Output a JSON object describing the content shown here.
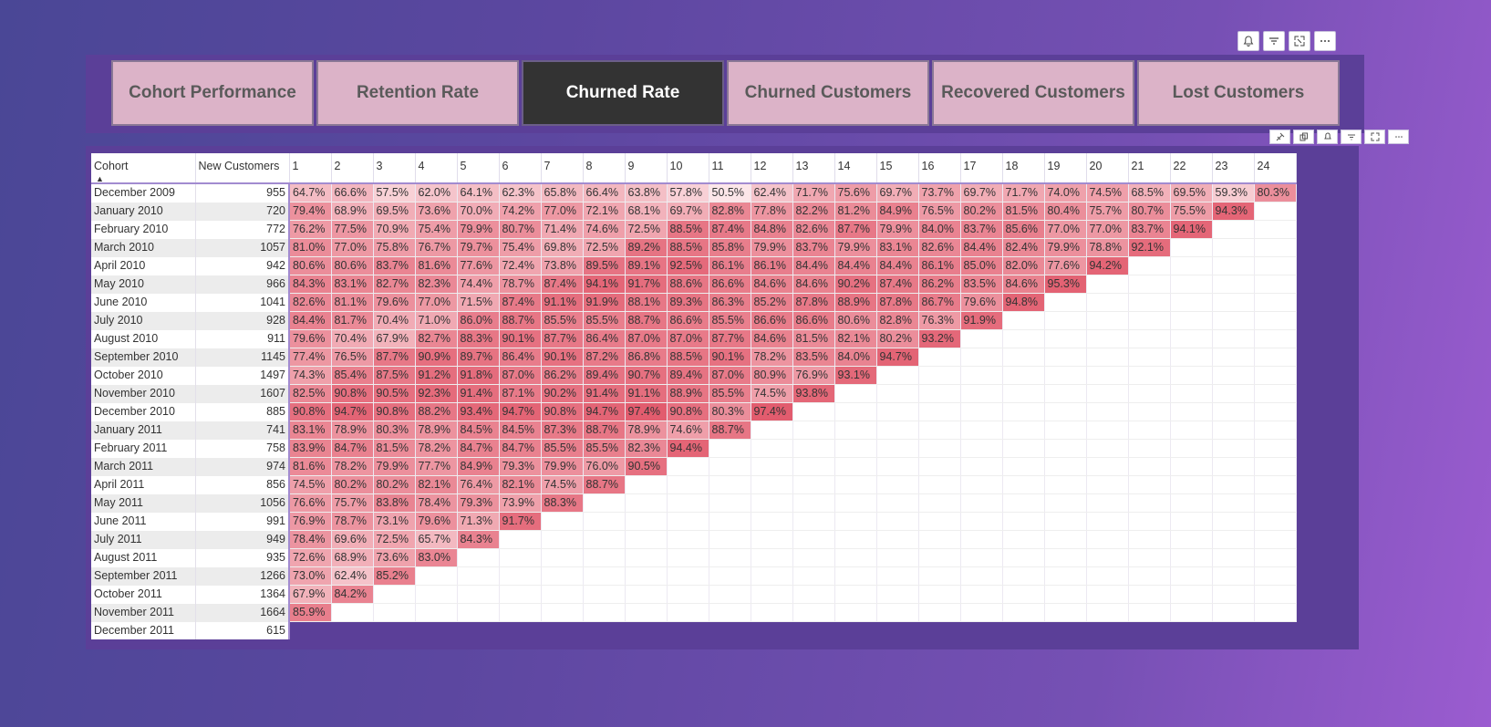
{
  "toolbar_icons": [
    "bell-icon",
    "filter-icon",
    "focus-mode-icon",
    "more-options-icon"
  ],
  "visual_header_icons": [
    "pin-icon",
    "copy-icon",
    "bell-icon",
    "filter-icon",
    "focus-mode-icon",
    "more-options-icon"
  ],
  "nav": {
    "buttons": [
      {
        "label": "Cohort Performance",
        "active": false
      },
      {
        "label": "Retention Rate",
        "active": false
      },
      {
        "label": "Churned Rate",
        "active": true
      },
      {
        "label": "Churned Customers",
        "active": false
      },
      {
        "label": "Recovered Customers",
        "active": false
      },
      {
        "label": "Lost Customers",
        "active": false
      }
    ]
  },
  "colors": {
    "active_button": "#333333",
    "inactive_button": "#dcb3c8",
    "panel": "#5b3f98",
    "heat_low": "#fbe3e6",
    "heat_high": "#e05a6c"
  },
  "matrix": {
    "header_cohort": "Cohort",
    "header_new": "New Customers",
    "periods": [
      "1",
      "2",
      "3",
      "4",
      "5",
      "6",
      "7",
      "8",
      "9",
      "10",
      "11",
      "12",
      "13",
      "14",
      "15",
      "16",
      "17",
      "18",
      "19",
      "20",
      "21",
      "22",
      "23",
      "24"
    ],
    "rows": [
      {
        "cohort": "December 2009",
        "new": "955",
        "values": [
          "64.7%",
          "66.6%",
          "57.5%",
          "62.0%",
          "64.1%",
          "62.3%",
          "65.8%",
          "66.4%",
          "63.8%",
          "57.8%",
          "50.5%",
          "62.4%",
          "71.7%",
          "75.6%",
          "69.7%",
          "73.7%",
          "69.7%",
          "71.7%",
          "74.0%",
          "74.5%",
          "68.5%",
          "69.5%",
          "59.3%",
          "80.3%"
        ]
      },
      {
        "cohort": "January 2010",
        "new": "720",
        "values": [
          "79.4%",
          "68.9%",
          "69.5%",
          "73.6%",
          "70.0%",
          "74.2%",
          "77.0%",
          "72.1%",
          "68.1%",
          "69.7%",
          "82.8%",
          "77.8%",
          "82.2%",
          "81.2%",
          "84.9%",
          "76.5%",
          "80.2%",
          "81.5%",
          "80.4%",
          "75.7%",
          "80.7%",
          "75.5%",
          "94.3%"
        ]
      },
      {
        "cohort": "February 2010",
        "new": "772",
        "values": [
          "76.2%",
          "77.5%",
          "70.9%",
          "75.4%",
          "79.9%",
          "80.7%",
          "71.4%",
          "74.6%",
          "72.5%",
          "88.5%",
          "87.4%",
          "84.8%",
          "82.6%",
          "87.7%",
          "79.9%",
          "84.0%",
          "83.7%",
          "85.6%",
          "77.0%",
          "77.0%",
          "83.7%",
          "94.1%"
        ]
      },
      {
        "cohort": "March 2010",
        "new": "1057",
        "values": [
          "81.0%",
          "77.0%",
          "75.8%",
          "76.7%",
          "79.7%",
          "75.4%",
          "69.8%",
          "72.5%",
          "89.2%",
          "88.5%",
          "85.8%",
          "79.9%",
          "83.7%",
          "79.9%",
          "83.1%",
          "82.6%",
          "84.4%",
          "82.4%",
          "79.9%",
          "78.8%",
          "92.1%"
        ]
      },
      {
        "cohort": "April 2010",
        "new": "942",
        "values": [
          "80.6%",
          "80.6%",
          "83.7%",
          "81.6%",
          "77.6%",
          "72.4%",
          "73.8%",
          "89.5%",
          "89.1%",
          "92.5%",
          "86.1%",
          "86.1%",
          "84.4%",
          "84.4%",
          "84.4%",
          "86.1%",
          "85.0%",
          "82.0%",
          "77.6%",
          "94.2%"
        ]
      },
      {
        "cohort": "May 2010",
        "new": "966",
        "values": [
          "84.3%",
          "83.1%",
          "82.7%",
          "82.3%",
          "74.4%",
          "78.7%",
          "87.4%",
          "94.1%",
          "91.7%",
          "88.6%",
          "86.6%",
          "84.6%",
          "84.6%",
          "90.2%",
          "87.4%",
          "86.2%",
          "83.5%",
          "84.6%",
          "95.3%"
        ]
      },
      {
        "cohort": "June 2010",
        "new": "1041",
        "values": [
          "82.6%",
          "81.1%",
          "79.6%",
          "77.0%",
          "71.5%",
          "87.4%",
          "91.1%",
          "91.9%",
          "88.1%",
          "89.3%",
          "86.3%",
          "85.2%",
          "87.8%",
          "88.9%",
          "87.8%",
          "86.7%",
          "79.6%",
          "94.8%"
        ]
      },
      {
        "cohort": "July 2010",
        "new": "928",
        "values": [
          "84.4%",
          "81.7%",
          "70.4%",
          "71.0%",
          "86.0%",
          "88.7%",
          "85.5%",
          "85.5%",
          "88.7%",
          "86.6%",
          "85.5%",
          "86.6%",
          "86.6%",
          "80.6%",
          "82.8%",
          "76.3%",
          "91.9%"
        ]
      },
      {
        "cohort": "August 2010",
        "new": "911",
        "values": [
          "79.6%",
          "70.4%",
          "67.9%",
          "82.7%",
          "88.3%",
          "90.1%",
          "87.7%",
          "86.4%",
          "87.0%",
          "87.0%",
          "87.7%",
          "84.6%",
          "81.5%",
          "82.1%",
          "80.2%",
          "93.2%"
        ]
      },
      {
        "cohort": "September 2010",
        "new": "1145",
        "values": [
          "77.4%",
          "76.5%",
          "87.7%",
          "90.9%",
          "89.7%",
          "86.4%",
          "90.1%",
          "87.2%",
          "86.8%",
          "88.5%",
          "90.1%",
          "78.2%",
          "83.5%",
          "84.0%",
          "94.7%"
        ]
      },
      {
        "cohort": "October 2010",
        "new": "1497",
        "values": [
          "74.3%",
          "85.4%",
          "87.5%",
          "91.2%",
          "91.8%",
          "87.0%",
          "86.2%",
          "89.4%",
          "90.7%",
          "89.4%",
          "87.0%",
          "80.9%",
          "76.9%",
          "93.1%"
        ]
      },
      {
        "cohort": "November 2010",
        "new": "1607",
        "values": [
          "82.5%",
          "90.8%",
          "90.5%",
          "92.3%",
          "91.4%",
          "87.1%",
          "90.2%",
          "91.4%",
          "91.1%",
          "88.9%",
          "85.5%",
          "74.5%",
          "93.8%"
        ]
      },
      {
        "cohort": "December 2010",
        "new": "885",
        "values": [
          "90.8%",
          "94.7%",
          "90.8%",
          "88.2%",
          "93.4%",
          "94.7%",
          "90.8%",
          "94.7%",
          "97.4%",
          "90.8%",
          "80.3%",
          "97.4%"
        ]
      },
      {
        "cohort": "January 2011",
        "new": "741",
        "values": [
          "83.1%",
          "78.9%",
          "80.3%",
          "78.9%",
          "84.5%",
          "84.5%",
          "87.3%",
          "88.7%",
          "78.9%",
          "74.6%",
          "88.7%"
        ]
      },
      {
        "cohort": "February 2011",
        "new": "758",
        "values": [
          "83.9%",
          "84.7%",
          "81.5%",
          "78.2%",
          "84.7%",
          "84.7%",
          "85.5%",
          "85.5%",
          "82.3%",
          "94.4%"
        ]
      },
      {
        "cohort": "March 2011",
        "new": "974",
        "values": [
          "81.6%",
          "78.2%",
          "79.9%",
          "77.7%",
          "84.9%",
          "79.3%",
          "79.9%",
          "76.0%",
          "90.5%"
        ]
      },
      {
        "cohort": "April 2011",
        "new": "856",
        "values": [
          "74.5%",
          "80.2%",
          "80.2%",
          "82.1%",
          "76.4%",
          "82.1%",
          "74.5%",
          "88.7%"
        ]
      },
      {
        "cohort": "May 2011",
        "new": "1056",
        "values": [
          "76.6%",
          "75.7%",
          "83.8%",
          "78.4%",
          "79.3%",
          "73.9%",
          "88.3%"
        ]
      },
      {
        "cohort": "June 2011",
        "new": "991",
        "values": [
          "76.9%",
          "78.7%",
          "73.1%",
          "79.6%",
          "71.3%",
          "91.7%"
        ]
      },
      {
        "cohort": "July 2011",
        "new": "949",
        "values": [
          "78.4%",
          "69.6%",
          "72.5%",
          "65.7%",
          "84.3%"
        ]
      },
      {
        "cohort": "August 2011",
        "new": "935",
        "values": [
          "72.6%",
          "68.9%",
          "73.6%",
          "83.0%"
        ]
      },
      {
        "cohort": "September 2011",
        "new": "1266",
        "values": [
          "73.0%",
          "62.4%",
          "85.2%"
        ]
      },
      {
        "cohort": "October 2011",
        "new": "1364",
        "values": [
          "67.9%",
          "84.2%"
        ]
      },
      {
        "cohort": "November 2011",
        "new": "1664",
        "values": [
          "85.9%"
        ]
      },
      {
        "cohort": "December 2011",
        "new": "615",
        "values": []
      }
    ]
  }
}
